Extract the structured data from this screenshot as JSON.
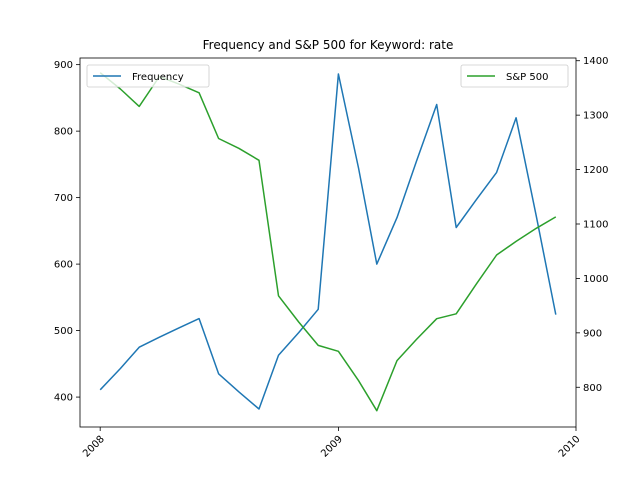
{
  "chart_data": {
    "type": "line",
    "title": "Frequency and S&P 500 for Keyword: rate",
    "xlabel": "",
    "x": [
      "2008-01-01",
      "2008-02-01",
      "2008-03-01",
      "2008-04-01",
      "2008-05-01",
      "2008-06-01",
      "2008-07-01",
      "2008-08-01",
      "2008-09-01",
      "2008-10-01",
      "2008-11-01",
      "2008-12-01",
      "2009-01-01",
      "2009-02-01",
      "2009-03-01",
      "2009-04-01",
      "2009-05-01",
      "2009-06-01",
      "2009-07-01",
      "2009-08-01",
      "2009-09-01",
      "2009-10-01",
      "2009-11-01",
      "2009-12-01"
    ],
    "x_ticks": [
      "2008",
      "2009",
      "2010"
    ],
    "x_tick_values": [
      "2008-01-01",
      "2009-01-01",
      "2010-01-01"
    ],
    "xlim": [
      "2007-12-01",
      "2010-01-01"
    ],
    "series": [
      {
        "name": "Frequency",
        "axis": "left",
        "color": "#1f77b4",
        "values": [
          411,
          443,
          475,
          490,
          504,
          518,
          435,
          408,
          382,
          463,
          497,
          532,
          886,
          744,
          600,
          670,
          755,
          840,
          655,
          697,
          738,
          820,
          672,
          524
        ]
      },
      {
        "name": "S&P 500",
        "axis": "right",
        "color": "#2ca02c",
        "values": [
          1378,
          1348,
          1316,
          1371,
          1357,
          1341,
          1257,
          1239,
          1217,
          968,
          920,
          877,
          866,
          812,
          757,
          849,
          888,
          926,
          935,
          990,
          1043,
          1068,
          1092,
          1113
        ]
      }
    ],
    "ylim_left": [
      355,
      910
    ],
    "yticks_left": [
      400,
      500,
      600,
      700,
      800,
      900
    ],
    "ylim_right": [
      727,
      1405
    ],
    "yticks_right": [
      800,
      900,
      1000,
      1100,
      1200,
      1300,
      1400
    ],
    "legends": [
      {
        "series": "Frequency",
        "placement": "upper-left"
      },
      {
        "series": "S&P 500",
        "placement": "upper-right"
      }
    ],
    "grid": false
  }
}
